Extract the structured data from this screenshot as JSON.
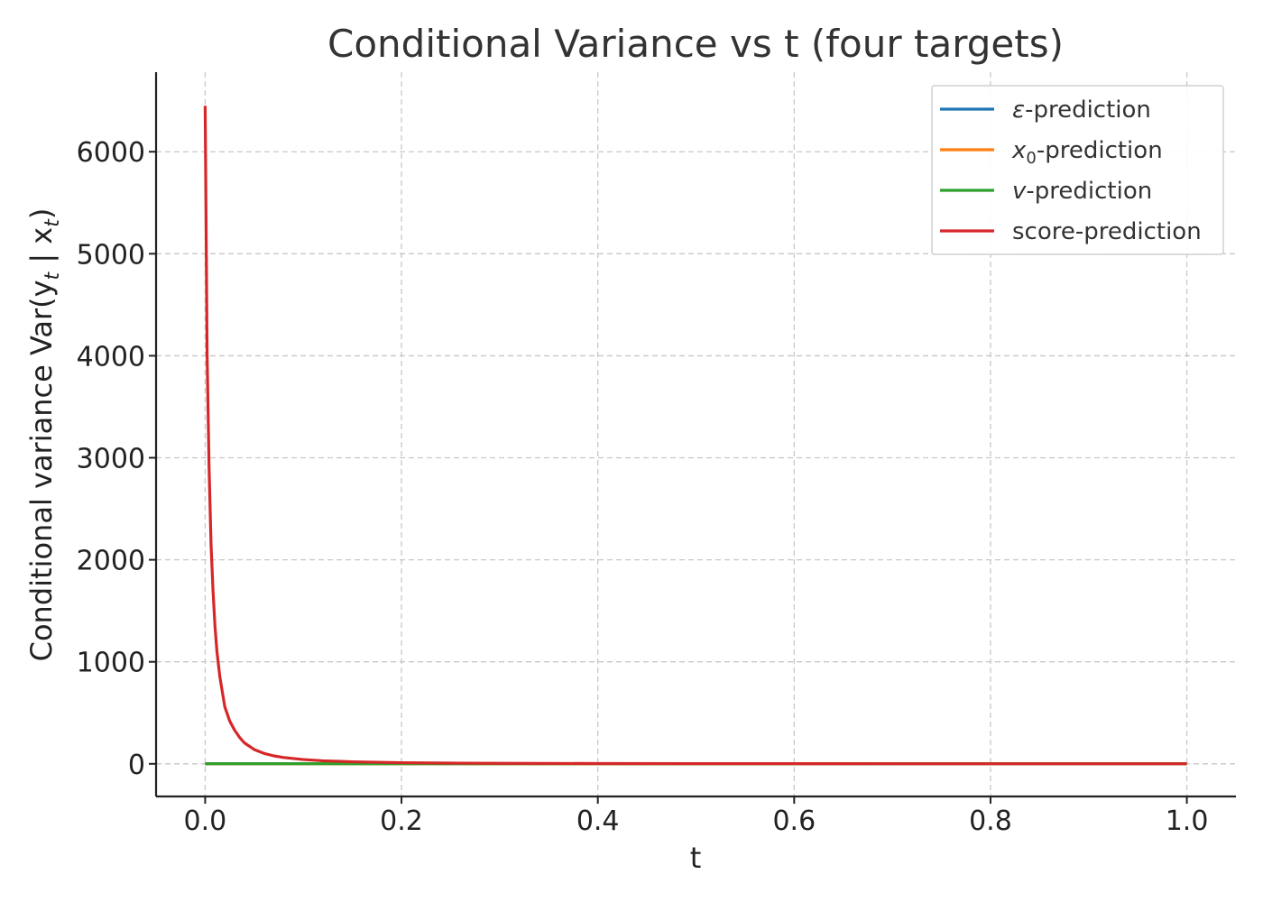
{
  "chart_data": {
    "type": "line",
    "title": "Conditional Variance vs t (four targets)",
    "xlabel": "t",
    "ylabel": "Conditional variance Var(y",
    "ylabel_sub1": "t",
    "ylabel_mid": " | x",
    "ylabel_sub2": "t",
    "ylabel_end": ")",
    "xlim": [
      -0.05,
      1.05
    ],
    "ylim": [
      -320,
      6780
    ],
    "xticks": [
      0.0,
      0.2,
      0.4,
      0.6,
      0.8,
      1.0
    ],
    "xtick_labels": [
      "0.0",
      "0.2",
      "0.4",
      "0.6",
      "0.8",
      "1.0"
    ],
    "yticks": [
      0,
      1000,
      2000,
      3000,
      4000,
      5000,
      6000
    ],
    "ytick_labels": [
      "0",
      "1000",
      "2000",
      "3000",
      "4000",
      "5000",
      "6000"
    ],
    "grid": true,
    "legend_position": "top-right",
    "x": [
      0.0,
      0.002,
      0.004,
      0.006,
      0.008,
      0.01,
      0.012,
      0.015,
      0.02,
      0.025,
      0.03,
      0.035,
      0.04,
      0.05,
      0.06,
      0.07,
      0.08,
      0.1,
      0.12,
      0.15,
      0.2,
      0.25,
      0.3,
      0.4,
      0.5,
      0.6,
      0.7,
      0.8,
      0.9,
      1.0
    ],
    "series": [
      {
        "name_pre": "ε",
        "name_sub": "",
        "name_post": "-prediction",
        "color": "#1f77b4",
        "values": [
          1,
          1,
          1,
          1,
          1,
          1,
          1,
          1,
          1,
          1,
          1,
          1,
          1,
          1,
          1,
          1,
          1,
          1,
          1,
          1,
          1,
          1,
          1,
          1,
          1,
          1,
          1,
          1,
          1,
          1
        ]
      },
      {
        "name_pre": "x",
        "name_sub": "0",
        "name_post": "-prediction",
        "color": "#ff7f0e",
        "values": [
          0,
          0,
          0,
          0,
          0,
          0,
          0,
          0,
          0,
          0,
          0,
          0,
          0,
          0,
          0,
          0,
          0,
          0,
          0,
          0,
          0,
          0,
          0,
          0,
          0,
          0,
          0,
          0,
          0,
          0
        ]
      },
      {
        "name_pre": "v",
        "name_sub": "",
        "name_post": "-prediction",
        "color": "#2ca02c",
        "values": [
          1,
          1,
          1,
          1,
          1,
          1,
          1,
          1,
          1,
          1,
          1,
          1,
          1,
          1,
          1,
          1,
          1,
          1,
          1,
          1,
          1,
          1,
          1,
          1,
          1,
          1,
          1,
          1,
          1,
          1
        ]
      },
      {
        "name_pre": "",
        "name_sub": "",
        "name_post": "score-prediction",
        "color": "#d62728",
        "values": [
          6450,
          4000,
          2900,
          2150,
          1700,
          1350,
          1100,
          850,
          560,
          420,
          330,
          260,
          205,
          140,
          102,
          78,
          62,
          42,
          30,
          20,
          11,
          7,
          5,
          3,
          2,
          2,
          1,
          1,
          1,
          1
        ]
      }
    ]
  }
}
